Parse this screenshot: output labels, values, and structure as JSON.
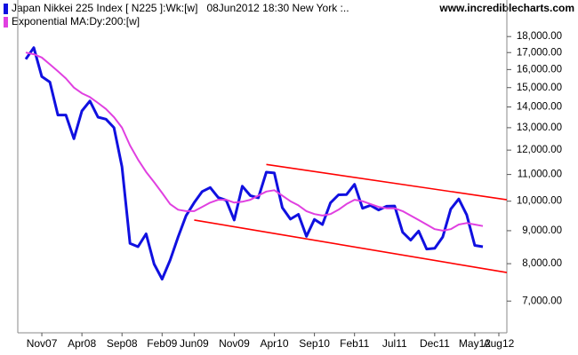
{
  "chart_data": {
    "type": "line",
    "subtitle": "08Jun2012 18:30 New York :..",
    "source": "www.incrediblecharts.com",
    "log_scale": true,
    "y_axis_side": "right",
    "x": [
      "2007-09",
      "2007-10",
      "2007-11",
      "2007-12",
      "2008-01",
      "2008-02",
      "2008-03",
      "2008-04",
      "2008-05",
      "2008-06",
      "2008-07",
      "2008-08",
      "2008-09",
      "2008-10",
      "2008-11",
      "2008-12",
      "2009-01",
      "2009-02",
      "2009-03",
      "2009-04",
      "2009-05",
      "2009-06",
      "2009-07",
      "2009-08",
      "2009-09",
      "2009-10",
      "2009-11",
      "2009-12",
      "2010-01",
      "2010-02",
      "2010-03",
      "2010-04",
      "2010-05",
      "2010-06",
      "2010-07",
      "2010-08",
      "2010-09",
      "2010-10",
      "2010-11",
      "2010-12",
      "2011-01",
      "2011-02",
      "2011-03",
      "2011-04",
      "2011-05",
      "2011-06",
      "2011-07",
      "2011-08",
      "2011-09",
      "2011-10",
      "2011-11",
      "2011-12",
      "2012-01",
      "2012-02",
      "2012-03",
      "2012-04",
      "2012-05",
      "2012-06"
    ],
    "series": [
      {
        "name": "Japan Nikkei 225 Index [ N225 ]:Wk:[w]",
        "color": "#1010e0",
        "values": [
          16600,
          17300,
          15600,
          15300,
          13600,
          13600,
          12500,
          13800,
          14300,
          13500,
          13400,
          13000,
          11300,
          8600,
          8500,
          8900,
          7990,
          7570,
          8100,
          8800,
          9500,
          9950,
          10350,
          10500,
          10130,
          10030,
          9350,
          10550,
          10200,
          10120,
          11090,
          11060,
          9770,
          9380,
          9540,
          8820,
          9370,
          9200,
          9940,
          10230,
          10240,
          10620,
          9750,
          9850,
          9690,
          9820,
          9830,
          8950,
          8700,
          8990,
          8430,
          8450,
          8800,
          9720,
          10080,
          9520,
          8540,
          8500
        ]
      },
      {
        "name": "Exponential MA:Dy:200:[w]",
        "color": "#e040e0",
        "values": [
          17000,
          16900,
          16700,
          16300,
          15900,
          15500,
          15000,
          14700,
          14500,
          14200,
          13900,
          13500,
          13000,
          12200,
          11600,
          11100,
          10700,
          10300,
          9900,
          9700,
          9650,
          9650,
          9800,
          9950,
          10050,
          10050,
          9950,
          9980,
          10050,
          10200,
          10350,
          10400,
          10200,
          10000,
          9850,
          9650,
          9550,
          9500,
          9550,
          9700,
          9900,
          10050,
          10000,
          9900,
          9800,
          9750,
          9750,
          9650,
          9500,
          9350,
          9200,
          9050,
          9000,
          9050,
          9200,
          9250,
          9200,
          9150
        ]
      }
    ],
    "trend_lines": [
      {
        "color": "#ff0000",
        "x": [
          "2010-03",
          "2012-09"
        ],
        "values": [
          11400,
          10050
        ]
      },
      {
        "color": "#ff0000",
        "x": [
          "2009-06",
          "2012-09"
        ],
        "values": [
          9350,
          7750
        ]
      }
    ],
    "xlim": [
      "2007-08",
      "2012-09"
    ],
    "xticks": [
      {
        "value": "2007-11",
        "label": "Nov07"
      },
      {
        "value": "2008-04",
        "label": "Apr08"
      },
      {
        "value": "2008-09",
        "label": "Sep08"
      },
      {
        "value": "2009-02",
        "label": "Feb09"
      },
      {
        "value": "2009-06",
        "label": "Jun09"
      },
      {
        "value": "2009-11",
        "label": "Nov09"
      },
      {
        "value": "2010-04",
        "label": "Apr10"
      },
      {
        "value": "2010-09",
        "label": "Sep10"
      },
      {
        "value": "2011-02",
        "label": "Feb11"
      },
      {
        "value": "2011-07",
        "label": "Jul11"
      },
      {
        "value": "2011-12",
        "label": "Dec11"
      },
      {
        "value": "2012-05",
        "label": "May12"
      },
      {
        "value": "2012-08",
        "label": "Aug12"
      }
    ],
    "ylim": [
      6250,
      19250
    ],
    "yticks": [
      {
        "value": 7000,
        "label": "7,000.00"
      },
      {
        "value": 8000,
        "label": "8,000.00"
      },
      {
        "value": 9000,
        "label": "9,000.00"
      },
      {
        "value": 10000,
        "label": "10,000.00"
      },
      {
        "value": 11000,
        "label": "11,000.00"
      },
      {
        "value": 12000,
        "label": "12,000.00"
      },
      {
        "value": 13000,
        "label": "13,000.00"
      },
      {
        "value": 14000,
        "label": "14,000.00"
      },
      {
        "value": 15000,
        "label": "15,000.00"
      },
      {
        "value": 16000,
        "label": "16,000.00"
      },
      {
        "value": 17000,
        "label": "17,000.00"
      },
      {
        "value": 18000,
        "label": "18,000.00"
      }
    ]
  }
}
